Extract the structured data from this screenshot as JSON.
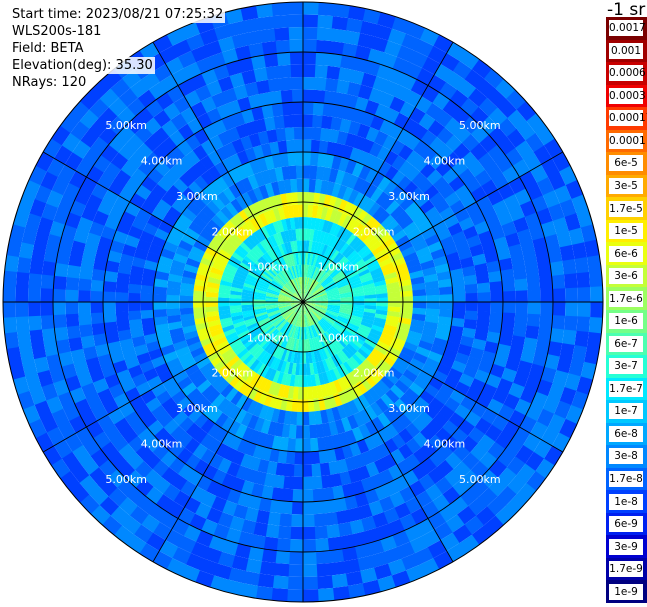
{
  "info": {
    "start_time": "Start time: 2023/08/21 07:25:32",
    "device": "WLS200s-181",
    "field": "Field: BETA",
    "elevation": "Elevation(deg): 35.30",
    "nrays": "NRays: 120"
  },
  "colorbar": {
    "title": "-1 sr",
    "labels": [
      "0.0017",
      "0.001",
      "0.0006",
      "0.0003",
      "0.00017",
      "0.0001",
      "6e-5",
      "3e-5",
      "1.7e-5",
      "1e-5",
      "6e-6",
      "3e-6",
      "1.7e-6",
      "1e-6",
      "6e-7",
      "3e-7",
      "1.7e-7",
      "1e-7",
      "6e-8",
      "3e-8",
      "1.7e-8",
      "1e-8",
      "6e-9",
      "3e-9",
      "1.7e-9",
      "1e-9"
    ],
    "colors": [
      "#7a0000",
      "#a00000",
      "#c80000",
      "#f00000",
      "#ff3a00",
      "#ff6a00",
      "#ff8c00",
      "#ffaa00",
      "#ffd000",
      "#ffee00",
      "#eaff10",
      "#c4ff38",
      "#9cff60",
      "#74ff88",
      "#4cffb0",
      "#26ffd6",
      "#00e8ff",
      "#00c8ff",
      "#00a8ff",
      "#0088ff",
      "#0064ff",
      "#0040ff",
      "#0020f0",
      "#0000d0",
      "#0000a8",
      "#000080"
    ]
  },
  "chart_data": {
    "type": "heatmap",
    "projection": "polar",
    "range_rings_km": [
      1.0,
      2.0,
      3.0,
      4.0,
      5.0
    ],
    "ring_labels": [
      "1.00km",
      "2.00km",
      "3.00km",
      "4.00km",
      "5.00km"
    ],
    "max_range_km": 6.0,
    "radial_lines_deg": [
      0,
      30,
      60,
      90,
      120,
      150,
      180,
      210,
      240,
      270,
      300,
      330
    ],
    "nrays": 120,
    "bands": [
      {
        "r0": 0.0,
        "r1": 0.5,
        "label": "1e-6"
      },
      {
        "r0": 0.5,
        "r1": 1.0,
        "label": "3e-7"
      },
      {
        "r0": 1.0,
        "r1": 1.7,
        "label": "1.7e-7"
      },
      {
        "r0": 1.7,
        "r1": 2.2,
        "label": "6e-6"
      },
      {
        "r0": 2.2,
        "r1": 3.0,
        "label": "3e-8"
      },
      {
        "r0": 3.0,
        "r1": 4.5,
        "label": "1.7e-8"
      },
      {
        "r0": 4.5,
        "r1": 6.0,
        "label": "1.7e-8"
      }
    ],
    "colorbar_field": "BETA",
    "colorbar_unit": "-1 sr"
  }
}
